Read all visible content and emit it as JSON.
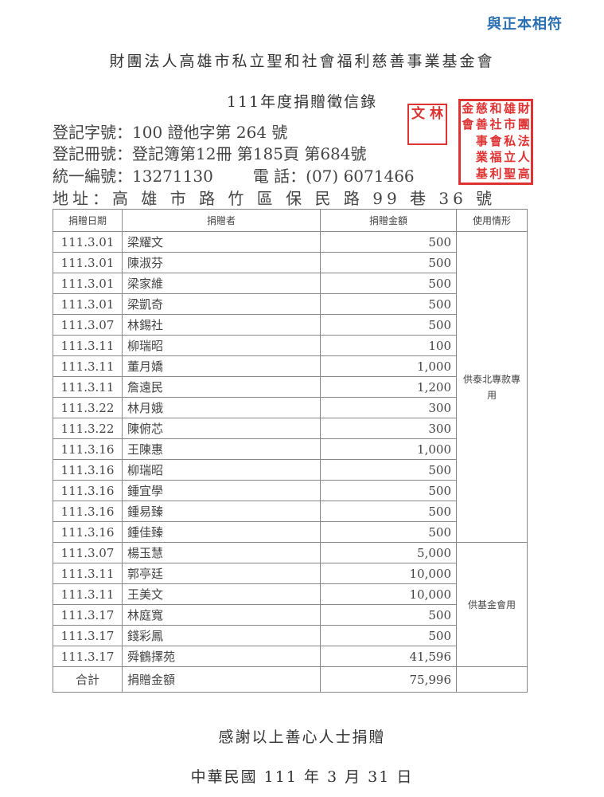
{
  "certified_mark": "與正本相符",
  "title": "財團法人高雄市私立聖和社會福利慈善事業基金會",
  "subtitle": "111年度捐贈徵信錄",
  "info": {
    "registration": "登記字號：100 證他字第 264 號",
    "book": "登記冊號：登記簿第12冊 第185頁 第684號",
    "unified_id": "統一編號：13271130",
    "phone": "電 話：(07) 6071466",
    "address": "地址：高 雄 市 路 竹 區 保 民 路 99 巷 36 號"
  },
  "stamps": {
    "small": "文林",
    "big": "財團法人高雄市私立聖和社會福利慈善事業基金會",
    "color": "#d33333"
  },
  "table": {
    "headers": [
      "捐贈日期",
      "捐贈者",
      "捐贈金額",
      "使用情形"
    ],
    "rows": [
      {
        "date": "111.3.01",
        "donor": "梁耀文",
        "amount": "500"
      },
      {
        "date": "111.3.01",
        "donor": "陳淑芬",
        "amount": "500"
      },
      {
        "date": "111.3.01",
        "donor": "梁家維",
        "amount": "500"
      },
      {
        "date": "111.3.01",
        "donor": "梁凱奇",
        "amount": "500"
      },
      {
        "date": "111.3.07",
        "donor": "林錫社",
        "amount": "500"
      },
      {
        "date": "111.3.11",
        "donor": "柳瑞昭",
        "amount": "100"
      },
      {
        "date": "111.3.11",
        "donor": "董月嬌",
        "amount": "1,000"
      },
      {
        "date": "111.3.11",
        "donor": "詹遠民",
        "amount": "1,200"
      },
      {
        "date": "111.3.22",
        "donor": "林月娥",
        "amount": "300"
      },
      {
        "date": "111.3.22",
        "donor": "陳俯芯",
        "amount": "300"
      },
      {
        "date": "111.3.16",
        "donor": "王陳惠",
        "amount": "1,000"
      },
      {
        "date": "111.3.16",
        "donor": "柳瑞昭",
        "amount": "500"
      },
      {
        "date": "111.3.16",
        "donor": "鍾宜學",
        "amount": "500"
      },
      {
        "date": "111.3.16",
        "donor": "鍾易臻",
        "amount": "500"
      },
      {
        "date": "111.3.16",
        "donor": "鍾佳臻",
        "amount": "500"
      },
      {
        "date": "111.3.07",
        "donor": "楊玉慧",
        "amount": "5,000"
      },
      {
        "date": "111.3.11",
        "donor": "郭亭廷",
        "amount": "10,000"
      },
      {
        "date": "111.3.11",
        "donor": "王美文",
        "amount": "10,000"
      },
      {
        "date": "111.3.17",
        "donor": "林庭寬",
        "amount": "500"
      },
      {
        "date": "111.3.17",
        "donor": "錢彩鳳",
        "amount": "500"
      },
      {
        "date": "111.3.17",
        "donor": "舜鶴擇苑",
        "amount": "41,596"
      }
    ],
    "usage": [
      "供泰北專款專用",
      "供基金會用"
    ],
    "total": {
      "label": "合計",
      "desc": "捐贈金額",
      "amount": "75,996"
    }
  },
  "thanks": "感謝以上善心人士捐贈",
  "date": "中華民國 111 年 3 月 31 日"
}
